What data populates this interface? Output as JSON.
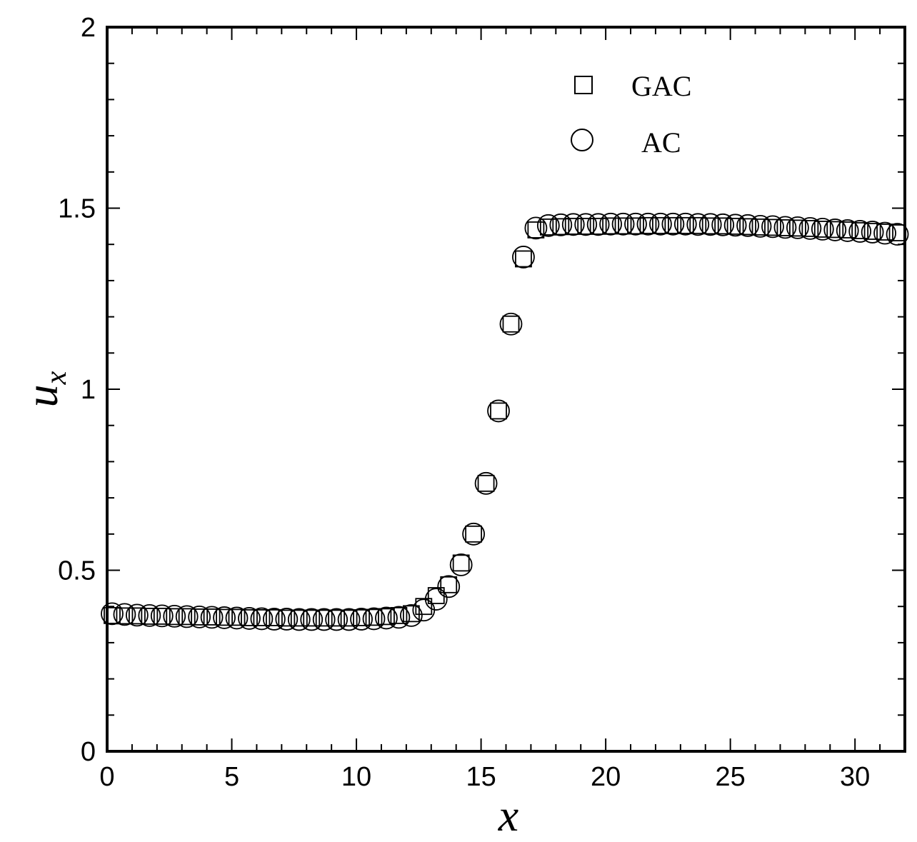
{
  "chart_data": {
    "type": "scatter",
    "xlabel": "x",
    "ylabel": "u",
    "ylabel_subscript": "x",
    "xlim": [
      0,
      32
    ],
    "ylim": [
      0,
      2
    ],
    "x_ticks": [
      "0",
      "5",
      "10",
      "15",
      "20",
      "25",
      "30"
    ],
    "y_ticks": [
      "0",
      "0.5",
      "1",
      "1.5",
      "2"
    ],
    "grid": false,
    "legend_position": "top-right",
    "series": [
      {
        "name": "GAC",
        "marker": "square",
        "x": [
          0.2,
          0.7,
          1.2,
          1.7,
          2.2,
          2.7,
          3.2,
          3.7,
          4.2,
          4.7,
          5.2,
          5.7,
          6.2,
          6.7,
          7.2,
          7.7,
          8.2,
          8.7,
          9.2,
          9.7,
          10.2,
          10.7,
          11.2,
          11.7,
          12.2,
          12.7,
          13.2,
          13.7,
          14.2,
          14.7,
          15.2,
          15.7,
          16.2,
          16.7,
          17.2,
          17.7,
          18.2,
          18.7,
          19.2,
          19.7,
          20.2,
          20.7,
          21.2,
          21.7,
          22.2,
          22.7,
          23.2,
          23.7,
          24.2,
          24.7,
          25.2,
          25.7,
          26.2,
          26.7,
          27.2,
          27.7,
          28.2,
          28.7,
          29.2,
          29.7,
          30.2,
          30.7,
          31.2,
          31.7
        ],
        "y": [
          0.375,
          0.374,
          0.374,
          0.373,
          0.373,
          0.372,
          0.372,
          0.371,
          0.371,
          0.37,
          0.37,
          0.369,
          0.369,
          0.369,
          0.368,
          0.368,
          0.368,
          0.368,
          0.368,
          0.368,
          0.369,
          0.37,
          0.372,
          0.375,
          0.38,
          0.4,
          0.43,
          0.46,
          0.52,
          0.6,
          0.74,
          0.94,
          1.18,
          1.36,
          1.44,
          1.448,
          1.449,
          1.45,
          1.45,
          1.45,
          1.451,
          1.451,
          1.451,
          1.452,
          1.452,
          1.452,
          1.452,
          1.452,
          1.451,
          1.451,
          1.45,
          1.449,
          1.448,
          1.447,
          1.446,
          1.445,
          1.444,
          1.442,
          1.441,
          1.44,
          1.438,
          1.436,
          1.434,
          1.432
        ]
      },
      {
        "name": "AC",
        "marker": "circle",
        "x": [
          0.2,
          0.7,
          1.2,
          1.7,
          2.2,
          2.7,
          3.2,
          3.7,
          4.2,
          4.7,
          5.2,
          5.7,
          6.2,
          6.7,
          7.2,
          7.7,
          8.2,
          8.7,
          9.2,
          9.7,
          10.2,
          10.7,
          11.2,
          11.7,
          12.2,
          12.7,
          13.2,
          13.7,
          14.2,
          14.7,
          15.2,
          15.7,
          16.2,
          16.7,
          17.2,
          17.7,
          18.2,
          18.7,
          19.2,
          19.7,
          20.2,
          20.7,
          21.2,
          21.7,
          22.2,
          22.7,
          23.2,
          23.7,
          24.2,
          24.7,
          25.2,
          25.7,
          26.2,
          26.7,
          27.2,
          27.7,
          28.2,
          28.7,
          29.2,
          29.7,
          30.2,
          30.7,
          31.2,
          31.7
        ],
        "y": [
          0.38,
          0.378,
          0.376,
          0.375,
          0.374,
          0.373,
          0.372,
          0.371,
          0.37,
          0.369,
          0.368,
          0.367,
          0.366,
          0.365,
          0.365,
          0.364,
          0.364,
          0.364,
          0.364,
          0.364,
          0.365,
          0.366,
          0.368,
          0.37,
          0.375,
          0.39,
          0.42,
          0.455,
          0.515,
          0.6,
          0.74,
          0.94,
          1.18,
          1.365,
          1.445,
          1.452,
          1.454,
          1.455,
          1.455,
          1.455,
          1.456,
          1.456,
          1.456,
          1.456,
          1.456,
          1.456,
          1.456,
          1.455,
          1.455,
          1.454,
          1.453,
          1.452,
          1.45,
          1.449,
          1.447,
          1.446,
          1.444,
          1.442,
          1.44,
          1.438,
          1.436,
          1.434,
          1.431,
          1.428
        ]
      }
    ]
  }
}
